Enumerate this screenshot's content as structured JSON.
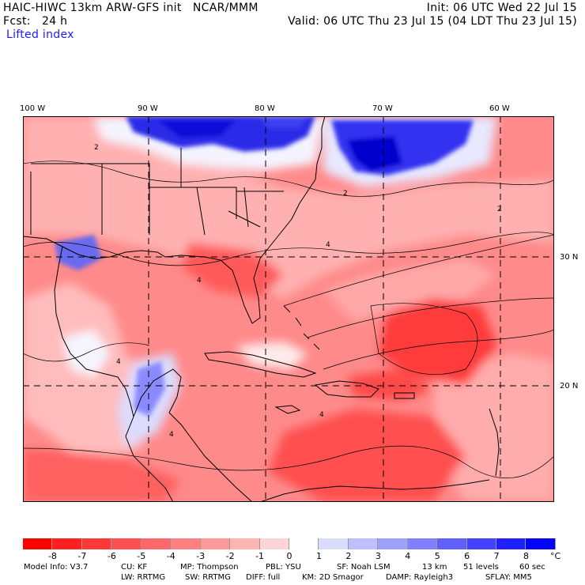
{
  "header": {
    "line1_left": "HAIC-HIWC 13km ARW-GFS init   NCAR/MMM",
    "line1_right": "Init: 06 UTC Wed 22 Jul 15",
    "line2_left": "Fcst:   24 h",
    "line2_right": "Valid: 06 UTC Thu 23 Jul 15 (04 LDT Thu 23 Jul 15)",
    "field": "Lifted index"
  },
  "map": {
    "lon_labels": [
      "100 W",
      "90 W",
      "80 W",
      "70 W",
      "60 W"
    ],
    "lat_labels": [
      "30 N",
      "20 N"
    ],
    "contour_labels": [
      "2",
      "2",
      "4",
      "4",
      "4",
      "4",
      "4",
      "2"
    ]
  },
  "colorbar": {
    "ticks": [
      "-8",
      "-7",
      "-6",
      "-5",
      "-4",
      "-3",
      "-2",
      "-1",
      "0",
      "1",
      "2",
      "3",
      "4",
      "5",
      "6",
      "7",
      "8"
    ],
    "unit": "°C",
    "colors": [
      "#ff0000",
      "#ff2020",
      "#ff3838",
      "#ff5050",
      "#ff6868",
      "#ff8080",
      "#ff9898",
      "#ffb4b4",
      "#ffd4d4",
      "#ffffff",
      "#dcdcff",
      "#c0c0ff",
      "#a0a0ff",
      "#8080ff",
      "#6060ff",
      "#4040ff",
      "#2020ff",
      "#0000ff"
    ]
  },
  "footer": {
    "row1": [
      "Model Info: V3.7",
      "CU: KF",
      "MP: Thompson",
      "PBL: YSU",
      "SF: Noah LSM",
      "13 km",
      "51 levels",
      "60 sec"
    ],
    "row2": [
      "LW: RRTMG",
      "SW: RRTMG",
      "DIFF: full",
      "KM: 2D Smagor",
      "DAMP: Rayleigh3",
      "SFLAY: MM5"
    ]
  }
}
